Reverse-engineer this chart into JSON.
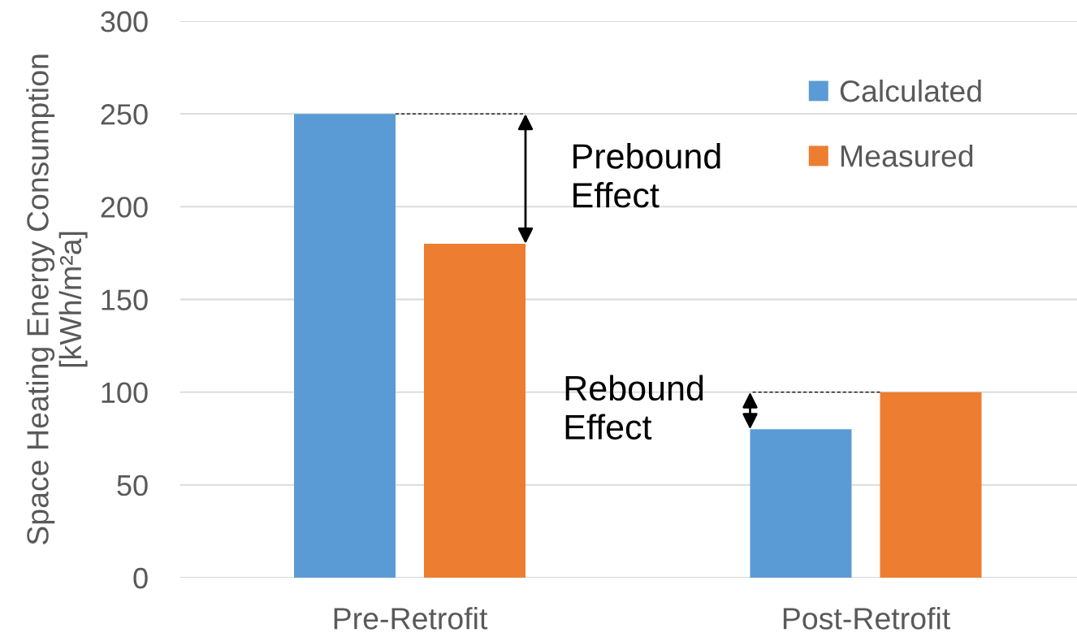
{
  "chart_data": {
    "type": "bar",
    "ylabel": "Space Heating Energy Consumption\n[kWh/m²a]",
    "categories": [
      "Pre-Retrofit",
      "Post-Retrofit"
    ],
    "series": [
      {
        "name": "Calculated",
        "color": "#5b9bd5",
        "values": [
          250,
          80
        ]
      },
      {
        "name": "Measured",
        "color": "#ed7d31",
        "values": [
          180,
          100
        ]
      }
    ],
    "ylim": [
      0,
      300
    ],
    "yticks": [
      0,
      50,
      100,
      150,
      200,
      250,
      300
    ],
    "grid": "y",
    "legend": "top right",
    "annotations": [
      "Prebound\nEffect",
      "Rebound\nEffect"
    ]
  }
}
